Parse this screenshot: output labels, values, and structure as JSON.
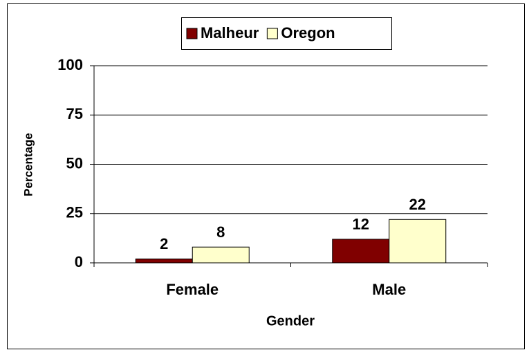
{
  "chart_data": {
    "type": "bar",
    "categories": [
      "Female",
      "Male"
    ],
    "series": [
      {
        "name": "Malheur",
        "color": "#800000",
        "values": [
          2,
          12
        ]
      },
      {
        "name": "Oregon",
        "color": "#ffffcc",
        "values": [
          8,
          22
        ]
      }
    ],
    "xlabel": "Gender",
    "ylabel": "Percentage",
    "ylim": [
      0,
      100
    ],
    "yticks": [
      0,
      25,
      50,
      75,
      100
    ],
    "grid": true,
    "legend": "top"
  }
}
